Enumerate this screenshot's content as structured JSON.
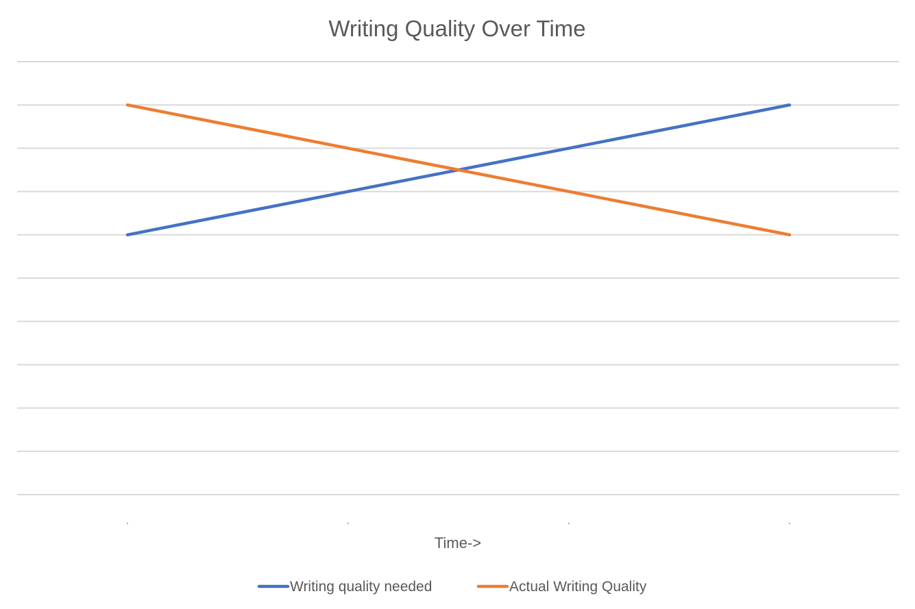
{
  "chart_data": {
    "type": "line",
    "title": "Writing Quality Over Time",
    "xlabel": "Time->",
    "ylabel": "",
    "categories": [
      ".",
      ".",
      ".",
      "."
    ],
    "series": [
      {
        "name": "Writing quality needed",
        "color": "#4472C4",
        "values": [
          6,
          7,
          8,
          9
        ]
      },
      {
        "name": "Actual Writing Quality",
        "color": "#ED7D31",
        "values": [
          9,
          8,
          7,
          6
        ]
      }
    ],
    "ylim": [
      0,
      10
    ],
    "yticks_shown": false,
    "grid": true,
    "gridline_color": "#D9D9D9",
    "legend_position": "bottom"
  }
}
